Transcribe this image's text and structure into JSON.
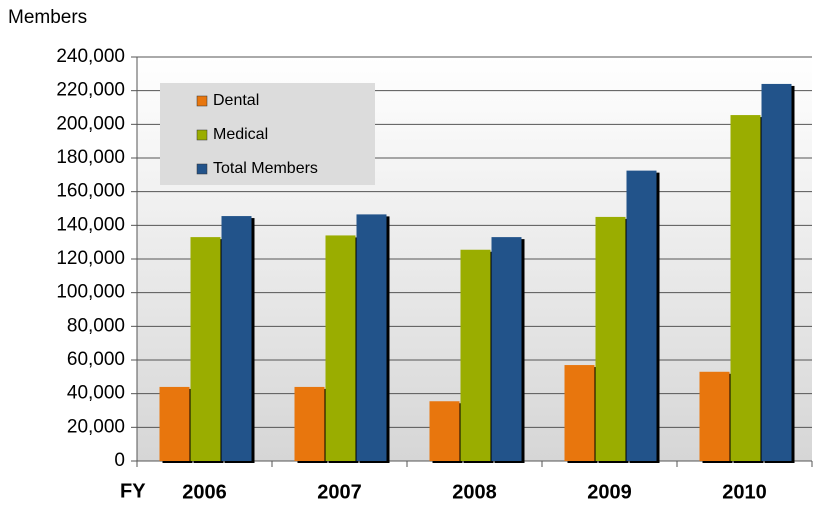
{
  "chart_data": {
    "type": "bar",
    "y_label": "Members",
    "x_label": "FY",
    "categories": [
      "2006",
      "2007",
      "2008",
      "2009",
      "2010"
    ],
    "series": [
      {
        "name": "Dental",
        "color": "#e8760e",
        "values": [
          44000,
          44000,
          35500,
          57000,
          53000
        ]
      },
      {
        "name": "Medical",
        "color": "#9aad00",
        "values": [
          133000,
          134000,
          125500,
          145000,
          205500
        ]
      },
      {
        "name": "Total Members",
        "color": "#22538a",
        "values": [
          145500,
          146500,
          133000,
          172500,
          224000
        ]
      }
    ],
    "ylim": [
      0,
      240000
    ],
    "yticks": [
      0,
      {
        "value": 20000,
        "label": "20,000"
      },
      {
        "value": 40000,
        "label": "40,000"
      },
      {
        "value": 60000,
        "label": "60,000"
      },
      {
        "value": 80000,
        "label": "80,000"
      },
      {
        "value": 100000,
        "label": "100,000"
      },
      {
        "value": 120000,
        "label": "120,000"
      },
      {
        "value": 140000,
        "label": "140,000"
      },
      {
        "value": 160000,
        "label": "160,000"
      },
      {
        "value": 180000,
        "label": "180,000"
      },
      {
        "value": 200000,
        "label": "200,000"
      },
      {
        "value": 220000,
        "label": "220,000"
      },
      {
        "value": 240000,
        "label": "240,000"
      }
    ],
    "grid": true,
    "legend": "top-left"
  }
}
